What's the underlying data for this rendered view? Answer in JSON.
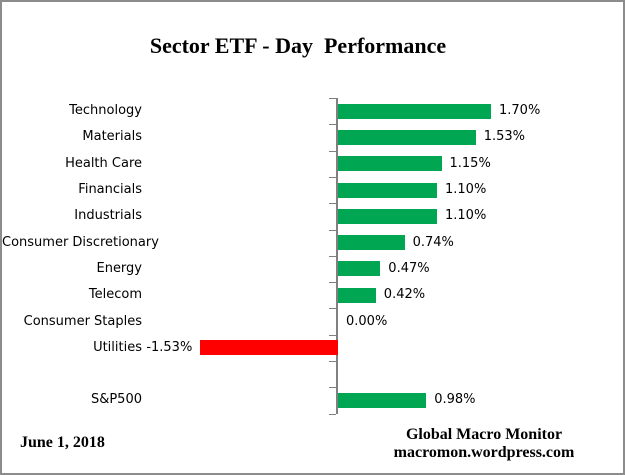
{
  "title": "Sector ETF - Day  Performance",
  "chart_data": {
    "type": "bar",
    "orientation": "horizontal",
    "title": "Sector ETF - Day  Performance",
    "xlabel": "",
    "ylabel": "",
    "grid": false,
    "legend": false,
    "xlim": [
      -1.6,
      1.8
    ],
    "categories": [
      "Technology",
      "Materials",
      "Health Care",
      "Financials",
      "Industrials",
      "Consumer Discretionary",
      "Energy",
      "Telecom",
      "Consumer Staples",
      "Utilities",
      "",
      "S&P500"
    ],
    "values": [
      1.7,
      1.53,
      1.15,
      1.1,
      1.1,
      0.74,
      0.47,
      0.42,
      0.0,
      -1.53,
      null,
      0.98
    ],
    "value_labels": [
      "1.70%",
      "1.53%",
      "1.15%",
      "1.10%",
      "1.10%",
      "0.74%",
      "0.47%",
      "0.42%",
      "0.00%",
      "-1.53%",
      "",
      "0.98%"
    ],
    "positive_color": "#00A651",
    "negative_color": "#FF0000",
    "axis_color": "#808080"
  },
  "footer": {
    "date": "June 1, 2018",
    "source_line1": "Global Macro Monitor",
    "source_line2": "macromon.wordpress.com"
  }
}
